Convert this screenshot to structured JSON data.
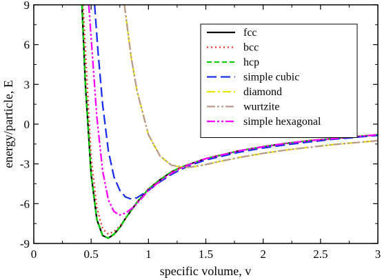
{
  "chart_data": {
    "type": "line",
    "xlabel": "specific volume, v",
    "ylabel": "energy/particle, E",
    "xlim": [
      0,
      3
    ],
    "ylim": [
      -9,
      9
    ],
    "xticks": [
      0,
      0.5,
      1,
      1.5,
      2,
      2.5,
      3
    ],
    "xtick_labels": [
      "0",
      "0.5",
      "1",
      "1.5",
      "2",
      "2.5",
      "3"
    ],
    "yticks": [
      -9,
      -6,
      -3,
      0,
      3,
      6,
      9
    ],
    "ytick_labels": [
      "-9",
      "-6",
      "-3",
      "0",
      "3",
      "6",
      "9"
    ],
    "grid": false,
    "legend_position": "top-right",
    "series": [
      {
        "name": "fcc",
        "color": "#000000",
        "dash": "solid",
        "x": [
          0.42,
          0.45,
          0.5,
          0.55,
          0.6,
          0.65,
          0.7,
          0.75,
          0.8,
          0.9,
          1.0,
          1.1,
          1.2,
          1.3,
          1.4,
          1.5,
          1.6,
          1.8,
          2.0,
          2.2,
          2.4,
          2.6,
          2.8,
          3.0
        ],
        "y": [
          9.0,
          3.0,
          -3.8,
          -7.2,
          -8.4,
          -8.6,
          -8.3,
          -7.8,
          -7.1,
          -5.9,
          -4.9,
          -4.2,
          -3.6,
          -3.2,
          -2.9,
          -2.6,
          -2.4,
          -2.0,
          -1.7,
          -1.45,
          -1.25,
          -1.1,
          -0.95,
          -0.8
        ]
      },
      {
        "name": "bcc",
        "color": "#e8312a",
        "dash": "dot",
        "x": [
          0.43,
          0.46,
          0.5,
          0.55,
          0.6,
          0.65,
          0.7,
          0.75,
          0.8,
          0.9,
          1.0,
          1.1,
          1.2,
          1.3,
          1.4,
          1.5,
          1.6,
          1.8,
          2.0,
          2.2,
          2.4,
          2.6,
          2.8,
          3.0
        ],
        "y": [
          9.0,
          4.0,
          -2.5,
          -6.3,
          -7.9,
          -8.3,
          -8.1,
          -7.7,
          -7.1,
          -5.9,
          -4.9,
          -4.2,
          -3.6,
          -3.2,
          -2.9,
          -2.6,
          -2.4,
          -2.0,
          -1.7,
          -1.45,
          -1.25,
          -1.1,
          -0.95,
          -0.8
        ]
      },
      {
        "name": "hcp",
        "color": "#00cc00",
        "dash": "dash",
        "x": [
          0.42,
          0.45,
          0.5,
          0.55,
          0.6,
          0.65,
          0.7,
          0.75,
          0.8,
          0.9,
          1.0,
          1.1,
          1.2,
          1.3,
          1.4,
          1.5,
          1.6,
          1.8,
          2.0,
          2.2,
          2.4,
          2.6,
          2.8,
          3.0
        ],
        "y": [
          9.0,
          3.0,
          -3.8,
          -7.2,
          -8.4,
          -8.6,
          -8.3,
          -7.8,
          -7.1,
          -5.9,
          -4.9,
          -4.2,
          -3.6,
          -3.2,
          -2.9,
          -2.6,
          -2.4,
          -2.0,
          -1.7,
          -1.45,
          -1.25,
          -1.1,
          -0.95,
          -0.8
        ]
      },
      {
        "name": "simple cubic",
        "color": "#1a2ee8",
        "dash": "longdash",
        "x": [
          0.53,
          0.56,
          0.6,
          0.65,
          0.7,
          0.75,
          0.8,
          0.85,
          0.9,
          1.0,
          1.1,
          1.2,
          1.3,
          1.4,
          1.5,
          1.6,
          1.8,
          2.0,
          2.2,
          2.4,
          2.6,
          2.8,
          3.0
        ],
        "y": [
          9.0,
          5.5,
          1.5,
          -2.0,
          -4.0,
          -5.0,
          -5.5,
          -5.65,
          -5.55,
          -5.0,
          -4.35,
          -3.8,
          -3.35,
          -3.0,
          -2.7,
          -2.5,
          -2.1,
          -1.8,
          -1.55,
          -1.35,
          -1.15,
          -1.0,
          -0.85
        ]
      },
      {
        "name": "diamond",
        "color": "#e6e600",
        "dash": "dashdot",
        "x": [
          0.79,
          0.85,
          0.9,
          1.0,
          1.1,
          1.2,
          1.3,
          1.35,
          1.4,
          1.5,
          1.6,
          1.8,
          2.0,
          2.2,
          2.4,
          2.6,
          2.8,
          3.0
        ],
        "y": [
          9.0,
          5.0,
          2.5,
          -0.8,
          -2.4,
          -3.1,
          -3.25,
          -3.25,
          -3.2,
          -3.05,
          -2.85,
          -2.5,
          -2.2,
          -1.95,
          -1.75,
          -1.55,
          -1.4,
          -1.25
        ]
      },
      {
        "name": "wurtzite",
        "color": "#b99b8c",
        "dash": "dashdotdot",
        "x": [
          0.79,
          0.85,
          0.9,
          1.0,
          1.1,
          1.2,
          1.3,
          1.35,
          1.4,
          1.5,
          1.6,
          1.8,
          2.0,
          2.2,
          2.4,
          2.6,
          2.8,
          3.0
        ],
        "y": [
          9.0,
          5.0,
          2.5,
          -0.8,
          -2.4,
          -3.1,
          -3.25,
          -3.25,
          -3.2,
          -3.05,
          -2.85,
          -2.5,
          -2.2,
          -1.95,
          -1.75,
          -1.55,
          -1.4,
          -1.25
        ]
      },
      {
        "name": "simple hexagonal",
        "color": "#ff00ff",
        "dash": "dashdotdot",
        "x": [
          0.48,
          0.5,
          0.55,
          0.6,
          0.65,
          0.7,
          0.75,
          0.8,
          0.85,
          0.9,
          1.0,
          1.1,
          1.2,
          1.3,
          1.4,
          1.5,
          1.6,
          1.8,
          2.0,
          2.2,
          2.4,
          2.6,
          2.8,
          3.0
        ],
        "y": [
          9.0,
          6.5,
          0.5,
          -3.5,
          -5.7,
          -6.6,
          -6.85,
          -6.7,
          -6.4,
          -6.0,
          -5.0,
          -4.3,
          -3.7,
          -3.25,
          -2.9,
          -2.6,
          -2.4,
          -2.0,
          -1.7,
          -1.45,
          -1.25,
          -1.1,
          -0.95,
          -0.8
        ]
      }
    ]
  }
}
